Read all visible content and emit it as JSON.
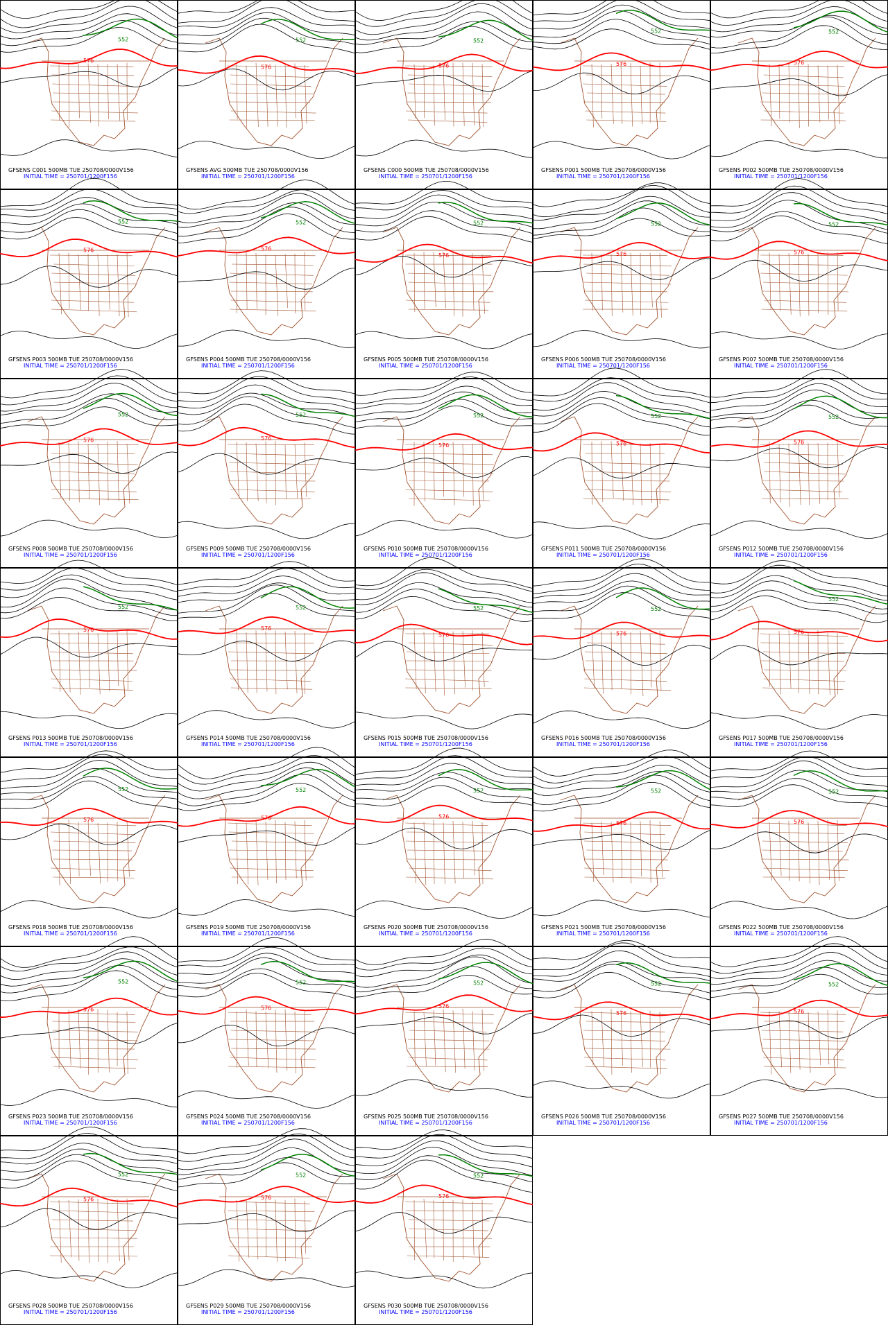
{
  "panels": [
    {
      "label": "GFSENS C001 500MB TUE 250708/0000V156"
    },
    {
      "label": "GFSENS AVG 500MB TUE 250708/0000V156"
    },
    {
      "label": "GFSENS C000 500MB TUE 250708/0000V156"
    },
    {
      "label": "GFSENS P001 500MB TUE 250708/0000V156"
    },
    {
      "label": "GFSENS P002 500MB TUE 250708/0000V156"
    },
    {
      "label": "GFSENS P003 500MB TUE 250708/0000V156"
    },
    {
      "label": "GFSENS P004 500MB TUE 250708/0000V156"
    },
    {
      "label": "GFSENS P005 500MB TUE 250708/0000V156"
    },
    {
      "label": "GFSENS P006 500MB TUE 250708/0000V156"
    },
    {
      "label": "GFSENS P007 500MB TUE 250708/0000V156"
    },
    {
      "label": "GFSENS P008 500MB TUE 250708/0000V156"
    },
    {
      "label": "GFSENS P009 500MB TUE 250708/0000V156"
    },
    {
      "label": "GFSENS P010 500MB TUE 250708/0000V156"
    },
    {
      "label": "GFSENS P011 500MB TUE 250708/0000V156"
    },
    {
      "label": "GFSENS P012 500MB TUE 250708/0000V156"
    },
    {
      "label": "GFSENS P013 500MB TUE 250708/0000V156"
    },
    {
      "label": "GFSENS P014 500MB TUE 250708/0000V156"
    },
    {
      "label": "GFSENS P015 500MB TUE 250708/0000V156"
    },
    {
      "label": "GFSENS P016 500MB TUE 250708/0000V156"
    },
    {
      "label": "GFSENS P017 500MB TUE 250708/0000V156"
    },
    {
      "label": "GFSENS P018 500MB TUE 250708/0000V156"
    },
    {
      "label": "GFSENS P019 500MB TUE 250708/0000V156"
    },
    {
      "label": "GFSENS P020 500MB TUE 250708/0000V156"
    },
    {
      "label": "GFSENS P021 500MB TUE 250708/0000V156"
    },
    {
      "label": "GFSENS P022 500MB TUE 250708/0000V156"
    },
    {
      "label": "GFSENS P023 500MB TUE 250708/0000V156"
    },
    {
      "label": "GFSENS P024 500MB TUE 250708/0000V156"
    },
    {
      "label": "GFSENS P025 500MB TUE 250708/0000V156"
    },
    {
      "label": "GFSENS P026 500MB TUE 250708/0000V156"
    },
    {
      "label": "GFSENS P027 500MB TUE 250708/0000V156"
    },
    {
      "label": "GFSENS P028 500MB TUE 250708/0000V156"
    },
    {
      "label": "GFSENS P029 500MB TUE 250708/0000V156"
    },
    {
      "label": "GFSENS P030 500MB TUE 250708/0000V156"
    }
  ],
  "initial_time": "INITIAL TIME = 250701/1200F156",
  "contour_labels": {
    "red": "576",
    "green": "552"
  }
}
